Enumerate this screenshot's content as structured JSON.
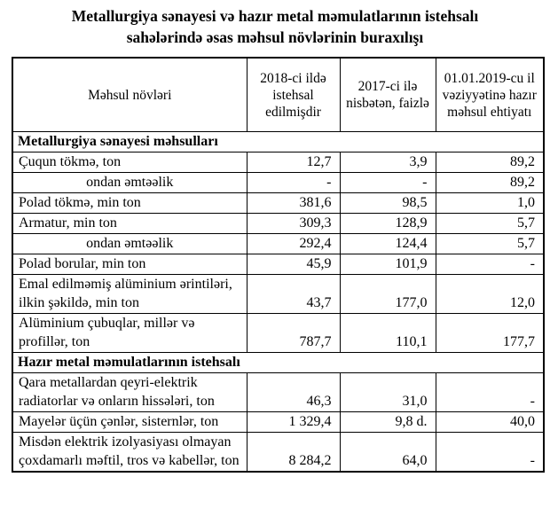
{
  "title": {
    "line1": "Metallurgiya sənayesi və hazır metal məmulatlarının istehsalı",
    "line2": "sahələrində əsas məhsul növlərinin buraxılışı"
  },
  "table": {
    "columns": [
      "Məhsul növləri",
      "2018-ci ildə istehsal edilmişdir",
      "2017-ci ilə nisbətən, faizlə",
      "01.01.2019-cu il vəziyyətinə hazır məhsul ehtiyatı"
    ],
    "rows": [
      {
        "type": "section",
        "label": "Metallurgiya sənayesi məhsulları"
      },
      {
        "type": "item",
        "label": "Çuqun tökmə, ton",
        "produced_2018": "12,7",
        "vs_2017_percent": "3,9",
        "stock_2019": "89,2"
      },
      {
        "type": "item",
        "centered": true,
        "label": "ondan əmtəəlik",
        "produced_2018": "-",
        "vs_2017_percent": "-",
        "stock_2019": "89,2"
      },
      {
        "type": "item",
        "label": "Polad tökmə, min ton",
        "produced_2018": "381,6",
        "vs_2017_percent": "98,5",
        "stock_2019": "1,0"
      },
      {
        "type": "item",
        "label": "Armatur, min ton",
        "produced_2018": "309,3",
        "vs_2017_percent": "128,9",
        "stock_2019": "5,7"
      },
      {
        "type": "item",
        "centered": true,
        "label": "ondan əmtəəlik",
        "produced_2018": "292,4",
        "vs_2017_percent": "124,4",
        "stock_2019": "5,7"
      },
      {
        "type": "item",
        "label": "Polad borular,  min ton",
        "produced_2018": "45,9",
        "vs_2017_percent": "101,9",
        "stock_2019": "-"
      },
      {
        "type": "item",
        "label": "Emal edilməmiş alüminium ərintiləri, ilkin şəkildə, min ton",
        "produced_2018": "43,7",
        "vs_2017_percent": "177,0",
        "stock_2019": "12,0"
      },
      {
        "type": "item",
        "label": "Alüminium çubuqlar, millər və profillər, ton",
        "produced_2018": "787,7",
        "vs_2017_percent": "110,1",
        "stock_2019": "177,7"
      },
      {
        "type": "section",
        "label": "Hazır metal məmulatlarının istehsalı"
      },
      {
        "type": "item",
        "label": "Qara metallardan qeyri-elektrik radiatorlar və onların hissələri, ton",
        "produced_2018": "46,3",
        "vs_2017_percent": "31,0",
        "stock_2019": "-"
      },
      {
        "type": "item",
        "label": "Mayelər üçün çənlər, sisternlər, ton",
        "produced_2018": "1 329,4",
        "vs_2017_percent": "9,8 d.",
        "stock_2019": "40,0"
      },
      {
        "type": "item",
        "label": "Misdən elektrik izolyasiyası olmayan çoxdamarlı məftil, tros və kabellər, ton",
        "produced_2018": "8 284,2",
        "vs_2017_percent": "64,0",
        "stock_2019": "-"
      }
    ]
  }
}
